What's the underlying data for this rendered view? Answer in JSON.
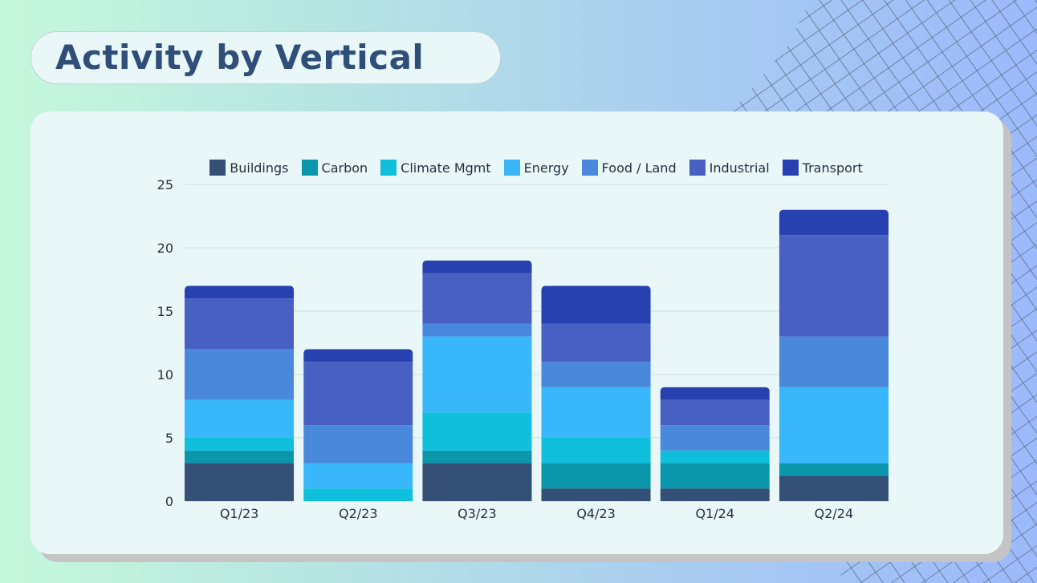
{
  "header": {
    "title": "Activity by Vertical"
  },
  "chart_data": {
    "type": "bar",
    "stacked": true,
    "title": "Activity by Vertical",
    "xlabel": "",
    "ylabel": "",
    "ylim": [
      0,
      25
    ],
    "yticks": [
      0,
      5,
      10,
      15,
      20,
      25
    ],
    "grid": true,
    "legend_position": "top",
    "categories": [
      "Q1/23",
      "Q2/23",
      "Q3/23",
      "Q4/23",
      "Q1/24",
      "Q2/24"
    ],
    "series": [
      {
        "name": "Buildings",
        "color": "#345077",
        "values": [
          3,
          0,
          3,
          1,
          1,
          2
        ]
      },
      {
        "name": "Carbon",
        "color": "#0a96ab",
        "values": [
          1,
          0,
          1,
          2,
          2,
          1
        ]
      },
      {
        "name": "Climate Mgmt",
        "color": "#0fbfdb",
        "values": [
          1,
          1,
          3,
          2,
          1,
          0
        ]
      },
      {
        "name": "Energy",
        "color": "#38b7fa",
        "values": [
          3,
          2,
          6,
          4,
          0,
          6
        ]
      },
      {
        "name": "Food / Land",
        "color": "#4a88dc",
        "values": [
          4,
          3,
          1,
          2,
          2,
          4
        ]
      },
      {
        "name": "Industrial",
        "color": "#4760c2",
        "values": [
          4,
          5,
          4,
          3,
          2,
          8
        ]
      },
      {
        "name": "Transport",
        "color": "#2841b0",
        "values": [
          1,
          1,
          1,
          3,
          1,
          2
        ]
      }
    ]
  }
}
